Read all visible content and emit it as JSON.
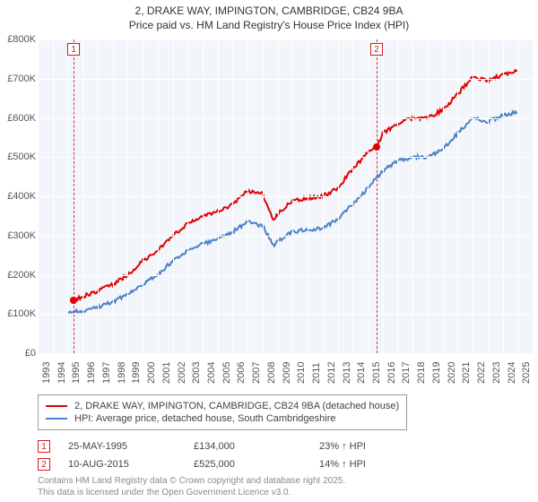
{
  "title_line1": "2, DRAKE WAY, IMPINGTON, CAMBRIDGE, CB24 9BA",
  "title_line2": "Price paid vs. HM Land Registry's House Price Index (HPI)",
  "chart": {
    "type": "line",
    "background_color": "#f2f5fa",
    "grid_color": "#ffffff",
    "ylim": [
      0,
      800000
    ],
    "ytick_step": 100000,
    "yticks": [
      {
        "v": 0,
        "label": "£0"
      },
      {
        "v": 100000,
        "label": "£100K"
      },
      {
        "v": 200000,
        "label": "£200K"
      },
      {
        "v": 300000,
        "label": "£300K"
      },
      {
        "v": 400000,
        "label": "£400K"
      },
      {
        "v": 500000,
        "label": "£500K"
      },
      {
        "v": 600000,
        "label": "£600K"
      },
      {
        "v": 700000,
        "label": "£700K"
      },
      {
        "v": 800000,
        "label": "£800K"
      }
    ],
    "xlim": [
      1993,
      2026
    ],
    "xticks": [
      1993,
      1994,
      1995,
      1996,
      1997,
      1998,
      1999,
      2000,
      2001,
      2002,
      2003,
      2004,
      2005,
      2006,
      2007,
      2008,
      2009,
      2010,
      2011,
      2012,
      2013,
      2014,
      2015,
      2016,
      2017,
      2018,
      2019,
      2020,
      2021,
      2022,
      2023,
      2024,
      2025
    ],
    "series": [
      {
        "name": "price_paid",
        "label": "2, DRAKE WAY, IMPINGTON, CAMBRIDGE, CB24 9BA (detached house)",
        "color": "#e00000",
        "line_width": 2,
        "data": [
          [
            1995.4,
            134000
          ],
          [
            1996,
            145000
          ],
          [
            1997,
            158000
          ],
          [
            1998,
            175000
          ],
          [
            1999,
            200000
          ],
          [
            2000,
            235000
          ],
          [
            2001,
            260000
          ],
          [
            2002,
            300000
          ],
          [
            2003,
            330000
          ],
          [
            2004,
            350000
          ],
          [
            2005,
            360000
          ],
          [
            2006,
            380000
          ],
          [
            2007,
            415000
          ],
          [
            2008,
            405000
          ],
          [
            2008.7,
            340000
          ],
          [
            2009,
            355000
          ],
          [
            2010,
            390000
          ],
          [
            2011,
            395000
          ],
          [
            2012,
            400000
          ],
          [
            2013,
            420000
          ],
          [
            2014,
            470000
          ],
          [
            2015,
            510000
          ],
          [
            2015.6,
            525000
          ],
          [
            2016,
            560000
          ],
          [
            2017,
            585000
          ],
          [
            2018,
            600000
          ],
          [
            2019,
            600000
          ],
          [
            2020,
            620000
          ],
          [
            2021,
            660000
          ],
          [
            2022,
            705000
          ],
          [
            2023,
            695000
          ],
          [
            2024,
            710000
          ],
          [
            2025,
            720000
          ]
        ]
      },
      {
        "name": "hpi",
        "label": "HPI: Average price, detached house, South Cambridgeshire",
        "color": "#4a80c8",
        "line_width": 2,
        "data": [
          [
            1995,
            105000
          ],
          [
            1996,
            108000
          ],
          [
            1997,
            118000
          ],
          [
            1998,
            130000
          ],
          [
            1999,
            150000
          ],
          [
            2000,
            175000
          ],
          [
            2001,
            200000
          ],
          [
            2002,
            235000
          ],
          [
            2003,
            260000
          ],
          [
            2004,
            280000
          ],
          [
            2005,
            290000
          ],
          [
            2006,
            310000
          ],
          [
            2007,
            335000
          ],
          [
            2008,
            325000
          ],
          [
            2008.7,
            275000
          ],
          [
            2009,
            285000
          ],
          [
            2010,
            310000
          ],
          [
            2011,
            315000
          ],
          [
            2012,
            320000
          ],
          [
            2013,
            340000
          ],
          [
            2014,
            380000
          ],
          [
            2015,
            420000
          ],
          [
            2016,
            465000
          ],
          [
            2017,
            490000
          ],
          [
            2018,
            500000
          ],
          [
            2019,
            500000
          ],
          [
            2020,
            520000
          ],
          [
            2021,
            560000
          ],
          [
            2022,
            600000
          ],
          [
            2023,
            590000
          ],
          [
            2024,
            605000
          ],
          [
            2025,
            615000
          ]
        ]
      }
    ],
    "markers": [
      {
        "id": "1",
        "x": 1995.4,
        "y": 134000,
        "color": "#e00000"
      },
      {
        "id": "2",
        "x": 2015.6,
        "y": 525000,
        "color": "#e00000"
      }
    ]
  },
  "legend": {
    "border_color": "#999999",
    "items": [
      {
        "color": "#e00000",
        "label": "2, DRAKE WAY, IMPINGTON, CAMBRIDGE, CB24 9BA (detached house)"
      },
      {
        "color": "#4a80c8",
        "label": "HPI: Average price, detached house, South Cambridgeshire"
      }
    ]
  },
  "transactions": [
    {
      "id": "1",
      "date": "25-MAY-1995",
      "price": "£134,000",
      "pct": "23% ↑ HPI"
    },
    {
      "id": "2",
      "date": "10-AUG-2015",
      "price": "£525,000",
      "pct": "14% ↑ HPI"
    }
  ],
  "footer_line1": "Contains HM Land Registry data © Crown copyright and database right 2025.",
  "footer_line2": "This data is licensed under the Open Government Licence v3.0."
}
